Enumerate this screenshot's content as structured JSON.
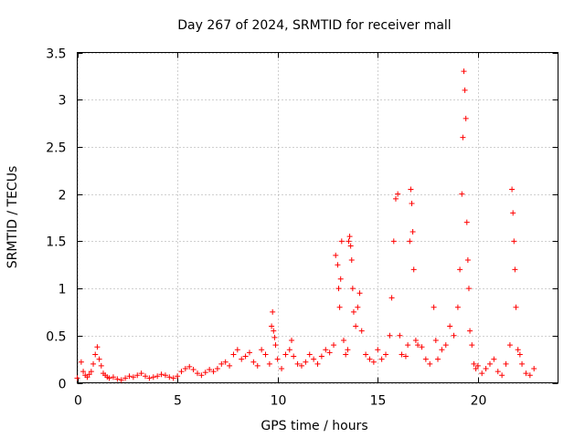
{
  "chart_data": {
    "type": "scatter",
    "title": "Day 267 of 2024, SRMTID for receiver mall",
    "xlabel": "GPS time / hours",
    "ylabel": "SRMTID / TECUs",
    "xlim": [
      0,
      24
    ],
    "ylim": [
      0,
      3.5
    ],
    "xticks": [
      0,
      5,
      10,
      15,
      20
    ],
    "xtick_labels": [
      "0",
      "5",
      "10",
      "15",
      "20"
    ],
    "yticks": [
      0,
      0.5,
      1,
      1.5,
      2,
      2.5,
      3,
      3.5
    ],
    "ytick_labels": [
      "0",
      "0.5",
      "1",
      "1.5",
      "2",
      "2.5",
      "3",
      "3.5"
    ],
    "grid": true,
    "marker": "+",
    "color": "#ff0000",
    "series": [
      {
        "name": "mall",
        "x": [
          0.0,
          0.2,
          0.3,
          0.4,
          0.5,
          0.6,
          0.7,
          0.8,
          0.9,
          1.0,
          1.1,
          1.2,
          1.3,
          1.4,
          1.5,
          1.6,
          1.8,
          2.0,
          2.2,
          2.4,
          2.6,
          2.8,
          3.0,
          3.2,
          3.4,
          3.6,
          3.8,
          4.0,
          4.2,
          4.4,
          4.6,
          4.8,
          5.0,
          5.2,
          5.4,
          5.6,
          5.8,
          6.0,
          6.2,
          6.4,
          6.6,
          6.8,
          7.0,
          7.2,
          7.4,
          7.6,
          7.8,
          8.0,
          8.2,
          8.4,
          8.6,
          8.8,
          9.0,
          9.2,
          9.4,
          9.6,
          9.7,
          9.75,
          9.8,
          9.85,
          9.9,
          10.0,
          10.2,
          10.4,
          10.6,
          10.7,
          10.8,
          11.0,
          11.2,
          11.4,
          11.6,
          11.8,
          12.0,
          12.2,
          12.4,
          12.6,
          12.8,
          12.9,
          13.0,
          13.05,
          13.1,
          13.15,
          13.2,
          13.3,
          13.4,
          13.5,
          13.55,
          13.6,
          13.65,
          13.7,
          13.75,
          13.8,
          13.9,
          14.0,
          14.1,
          14.2,
          14.4,
          14.6,
          14.8,
          15.0,
          15.2,
          15.4,
          15.6,
          15.7,
          15.8,
          15.9,
          16.0,
          16.1,
          16.2,
          16.4,
          16.5,
          16.6,
          16.65,
          16.7,
          16.75,
          16.8,
          16.9,
          17.0,
          17.2,
          17.4,
          17.6,
          17.8,
          17.9,
          18.0,
          18.2,
          18.4,
          18.6,
          18.8,
          19.0,
          19.1,
          19.2,
          19.25,
          19.3,
          19.35,
          19.4,
          19.45,
          19.5,
          19.55,
          19.6,
          19.7,
          19.8,
          19.9,
          20.0,
          20.2,
          20.4,
          20.6,
          20.8,
          21.0,
          21.2,
          21.4,
          21.6,
          21.7,
          21.75,
          21.8,
          21.85,
          21.9,
          22.0,
          22.1,
          22.2,
          22.4,
          22.6,
          22.8
        ],
        "y": [
          0.05,
          0.22,
          0.12,
          0.08,
          0.06,
          0.09,
          0.12,
          0.2,
          0.3,
          0.38,
          0.25,
          0.18,
          0.1,
          0.08,
          0.06,
          0.05,
          0.06,
          0.04,
          0.03,
          0.05,
          0.07,
          0.06,
          0.08,
          0.1,
          0.07,
          0.05,
          0.06,
          0.07,
          0.09,
          0.08,
          0.06,
          0.05,
          0.07,
          0.12,
          0.15,
          0.17,
          0.14,
          0.1,
          0.08,
          0.11,
          0.14,
          0.12,
          0.15,
          0.2,
          0.22,
          0.18,
          0.3,
          0.35,
          0.25,
          0.28,
          0.32,
          0.22,
          0.18,
          0.35,
          0.3,
          0.2,
          0.6,
          0.75,
          0.55,
          0.48,
          0.4,
          0.25,
          0.15,
          0.3,
          0.35,
          0.45,
          0.28,
          0.2,
          0.18,
          0.22,
          0.3,
          0.25,
          0.2,
          0.28,
          0.35,
          0.32,
          0.4,
          1.35,
          1.25,
          1.0,
          0.8,
          1.1,
          1.5,
          0.45,
          0.3,
          0.35,
          1.5,
          1.55,
          1.45,
          1.3,
          1.0,
          0.75,
          0.6,
          0.8,
          0.95,
          0.55,
          0.3,
          0.25,
          0.22,
          0.35,
          0.25,
          0.3,
          0.5,
          0.9,
          1.5,
          1.95,
          2.0,
          0.5,
          0.3,
          0.28,
          0.4,
          1.5,
          2.05,
          1.9,
          1.6,
          1.2,
          0.45,
          0.4,
          0.38,
          0.25,
          0.2,
          0.8,
          0.45,
          0.25,
          0.35,
          0.4,
          0.6,
          0.5,
          0.8,
          1.2,
          2.0,
          2.6,
          3.3,
          3.1,
          2.8,
          1.7,
          1.3,
          1.0,
          0.55,
          0.4,
          0.2,
          0.15,
          0.18,
          0.1,
          0.15,
          0.2,
          0.25,
          0.12,
          0.08,
          0.2,
          0.4,
          2.05,
          1.8,
          1.5,
          1.2,
          0.8,
          0.35,
          0.3,
          0.2,
          0.1,
          0.08,
          0.15
        ]
      }
    ]
  }
}
